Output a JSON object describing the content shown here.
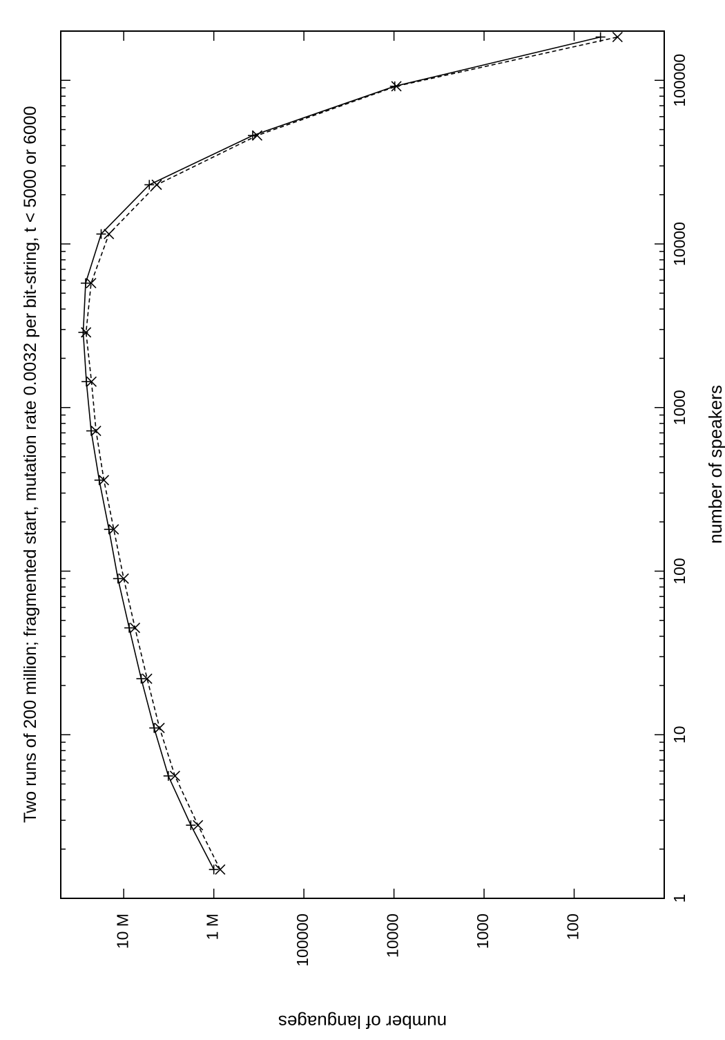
{
  "chart_data": {
    "type": "line",
    "title": "Two runs of 200 million; fragmented start, mutation rate 0.0032 per bit-string, t < 5000 or 6000",
    "xlabel": "number of speakers",
    "ylabel": "number of languages",
    "x_scale": "log",
    "y_scale": "log",
    "xlim": [
      1,
      200000
    ],
    "ylim": [
      10,
      50000000
    ],
    "x_ticks": [
      {
        "value": 1,
        "label": "1"
      },
      {
        "value": 10,
        "label": "10"
      },
      {
        "value": 100,
        "label": "100"
      },
      {
        "value": 1000,
        "label": "1000"
      },
      {
        "value": 10000,
        "label": "10000"
      },
      {
        "value": 100000,
        "label": "100000"
      }
    ],
    "y_ticks": [
      {
        "value": 100,
        "label": "100"
      },
      {
        "value": 1000,
        "label": "1000"
      },
      {
        "value": 10000,
        "label": "10000"
      },
      {
        "value": 100000,
        "label": "100000"
      },
      {
        "value": 1000000,
        "label": "1 M"
      },
      {
        "value": 10000000,
        "label": "10 M"
      }
    ],
    "grid": false,
    "legend": "none",
    "orientation": "rotated 90° counter-clockwise",
    "series": [
      {
        "line_style": "solid",
        "marker": "plus",
        "color": "#000000",
        "x": [
          1.5,
          2.8,
          5.6,
          11,
          22,
          45,
          90,
          180,
          360,
          720,
          1440,
          2880,
          5760,
          11500,
          23000,
          46000,
          92000,
          184000
        ],
        "y": [
          1000000,
          1800000,
          3200000,
          4600000,
          6400000,
          8700000,
          11600000,
          14600000,
          18700000,
          23000000,
          26000000,
          28200000,
          26500000,
          17800000,
          5200000,
          370000,
          9800,
          51
        ]
      },
      {
        "line_style": "dashed",
        "marker": "x",
        "color": "#000000",
        "x": [
          1.5,
          2.8,
          5.6,
          11,
          22,
          45,
          90,
          180,
          360,
          720,
          1440,
          2880,
          5760,
          11500,
          23000,
          46000,
          92000,
          184000
        ],
        "y": [
          850000,
          1500000,
          2700000,
          4000000,
          5500000,
          7500000,
          10000000,
          12900000,
          16600000,
          20300000,
          22800000,
          26200000,
          23000000,
          14600000,
          4300000,
          330000,
          9400,
          33
        ]
      }
    ]
  }
}
